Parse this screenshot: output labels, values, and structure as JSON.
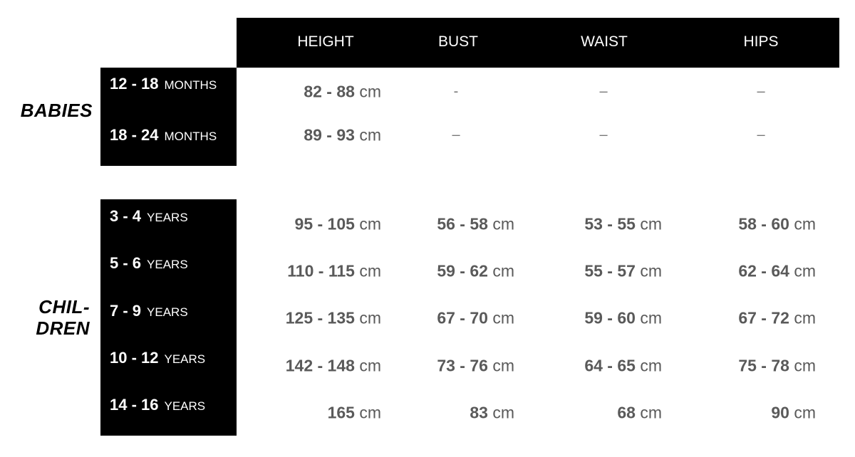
{
  "header": [
    "HEIGHT",
    "BUST",
    "WAIST",
    "HIPS"
  ],
  "babies": {
    "label": "BABIES",
    "rows": [
      {
        "range": "12 - 18",
        "unit": "MONTHS",
        "height": "82 - 88",
        "bust": "-",
        "waist": "–",
        "hips": "–"
      },
      {
        "range": "18 - 24",
        "unit": "MONTHS",
        "height": "89 - 93",
        "bust": "–",
        "waist": "–",
        "hips": "–"
      }
    ]
  },
  "children": {
    "label_line1": "CHIL-",
    "label_line2": "DREN",
    "rows": [
      {
        "range": "3 - 4",
        "unit": "YEARS",
        "height": "95 - 105",
        "bust": "56 - 58",
        "waist": "53 - 55",
        "hips": "58 - 60"
      },
      {
        "range": "5 - 6",
        "unit": "YEARS",
        "height": "110 - 115",
        "bust": "59 - 62",
        "waist": "55 - 57",
        "hips": "62 - 64"
      },
      {
        "range": "7 - 9",
        "unit": "YEARS",
        "height": "125 - 135",
        "bust": "67 - 70",
        "waist": "59 - 60",
        "hips": "67 - 72"
      },
      {
        "range": "10 - 12",
        "unit": "YEARS",
        "height": "142 - 148",
        "bust": "73 - 76",
        "waist": "64 - 65",
        "hips": "75 - 78"
      },
      {
        "range": "14 - 16",
        "unit": "YEARS",
        "height": "165",
        "bust": "83",
        "waist": "68",
        "hips": "90"
      }
    ]
  },
  "unit": "cm"
}
